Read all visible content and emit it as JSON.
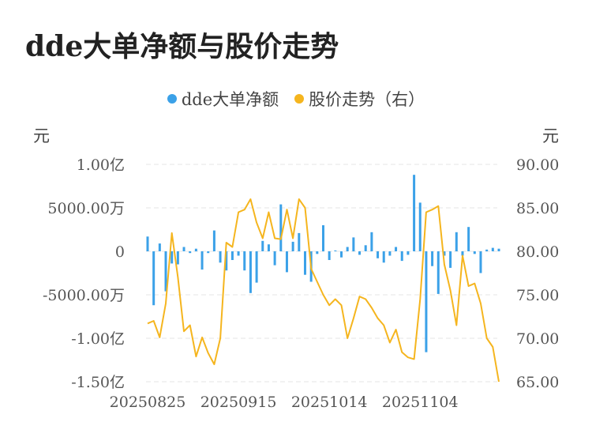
{
  "title": "dde大单净额与股价走势",
  "legend": [
    {
      "label": "dde大单净额",
      "color": "#3ba1e8"
    },
    {
      "label": "股价走势（右）",
      "color": "#f5b51e"
    }
  ],
  "units": {
    "left": "元",
    "right": "元"
  },
  "chart_data": {
    "type": "bar+line",
    "title": "dde大单净额与股价走势",
    "grid": true,
    "legend_position": "top-center",
    "y_left": {
      "unit": "元",
      "ticks": [
        {
          "value": 100000000,
          "label": "1.00亿"
        },
        {
          "value": 50000000,
          "label": "5000.00万"
        },
        {
          "value": 0,
          "label": "0"
        },
        {
          "value": -50000000,
          "label": "-5000.00万"
        },
        {
          "value": -100000000,
          "label": "-1.00亿"
        },
        {
          "value": -150000000,
          "label": "-1.50亿"
        }
      ],
      "ylim": [
        -150000000,
        100000000
      ]
    },
    "y_right": {
      "unit": "元",
      "ticks": [
        {
          "value": 90,
          "label": "90.00"
        },
        {
          "value": 85,
          "label": "85.00"
        },
        {
          "value": 80,
          "label": "80.00"
        },
        {
          "value": 75,
          "label": "75.00"
        },
        {
          "value": 70,
          "label": "70.00"
        },
        {
          "value": 65,
          "label": "65.00"
        }
      ],
      "ylim": [
        65,
        90
      ]
    },
    "x_ticks": [
      {
        "index": 0,
        "label": "20250825"
      },
      {
        "index": 15,
        "label": "20250915"
      },
      {
        "index": 30,
        "label": "20251014"
      },
      {
        "index": 45,
        "label": "20251104"
      }
    ],
    "series": [
      {
        "name": "dde大单净额",
        "kind": "bar",
        "axis": "left",
        "color": "#3ba1e8",
        "values": [
          17000000,
          -62000000,
          9000000,
          -46000000,
          -14000000,
          -15000000,
          5000000,
          -2000000,
          3000000,
          -21000000,
          -2000000,
          24000000,
          -13000000,
          -22000000,
          -10000000,
          -5000000,
          -22000000,
          -48000000,
          -36000000,
          12000000,
          8000000,
          -16000000,
          54000000,
          -24000000,
          11000000,
          21000000,
          -27000000,
          -35000000,
          -3000000,
          30000000,
          -10000000,
          1000000,
          -7000000,
          5000000,
          16000000,
          -4000000,
          7000000,
          22000000,
          -8000000,
          -13000000,
          -5000000,
          5000000,
          -11000000,
          -4000000,
          88000000,
          56000000,
          -116000000,
          -17000000,
          -49000000,
          -5000000,
          -19000000,
          22000000,
          -5000000,
          28000000,
          -3000000,
          -25000000,
          2000000,
          4000000,
          3000000
        ]
      },
      {
        "name": "股价走势（右）",
        "kind": "line",
        "axis": "right",
        "color": "#f5b51e",
        "values": [
          71.7,
          72.0,
          70.1,
          74.0,
          82.1,
          77.0,
          70.8,
          71.5,
          67.9,
          70.1,
          68.3,
          67.0,
          70.0,
          81.0,
          80.5,
          84.5,
          84.8,
          86.0,
          83.3,
          81.5,
          84.5,
          81.5,
          81.4,
          84.8,
          81.5,
          86.0,
          85.0,
          78.0,
          76.5,
          75.0,
          73.8,
          74.5,
          73.8,
          70.0,
          72.3,
          74.8,
          74.5,
          73.5,
          72.3,
          71.5,
          69.5,
          71.0,
          68.4,
          67.8,
          67.6,
          74.5,
          84.5,
          84.8,
          85.2,
          78.5,
          75.5,
          71.5,
          79.5,
          76.0,
          76.3,
          74.0,
          70.0,
          69.0,
          65.0
        ]
      }
    ]
  }
}
